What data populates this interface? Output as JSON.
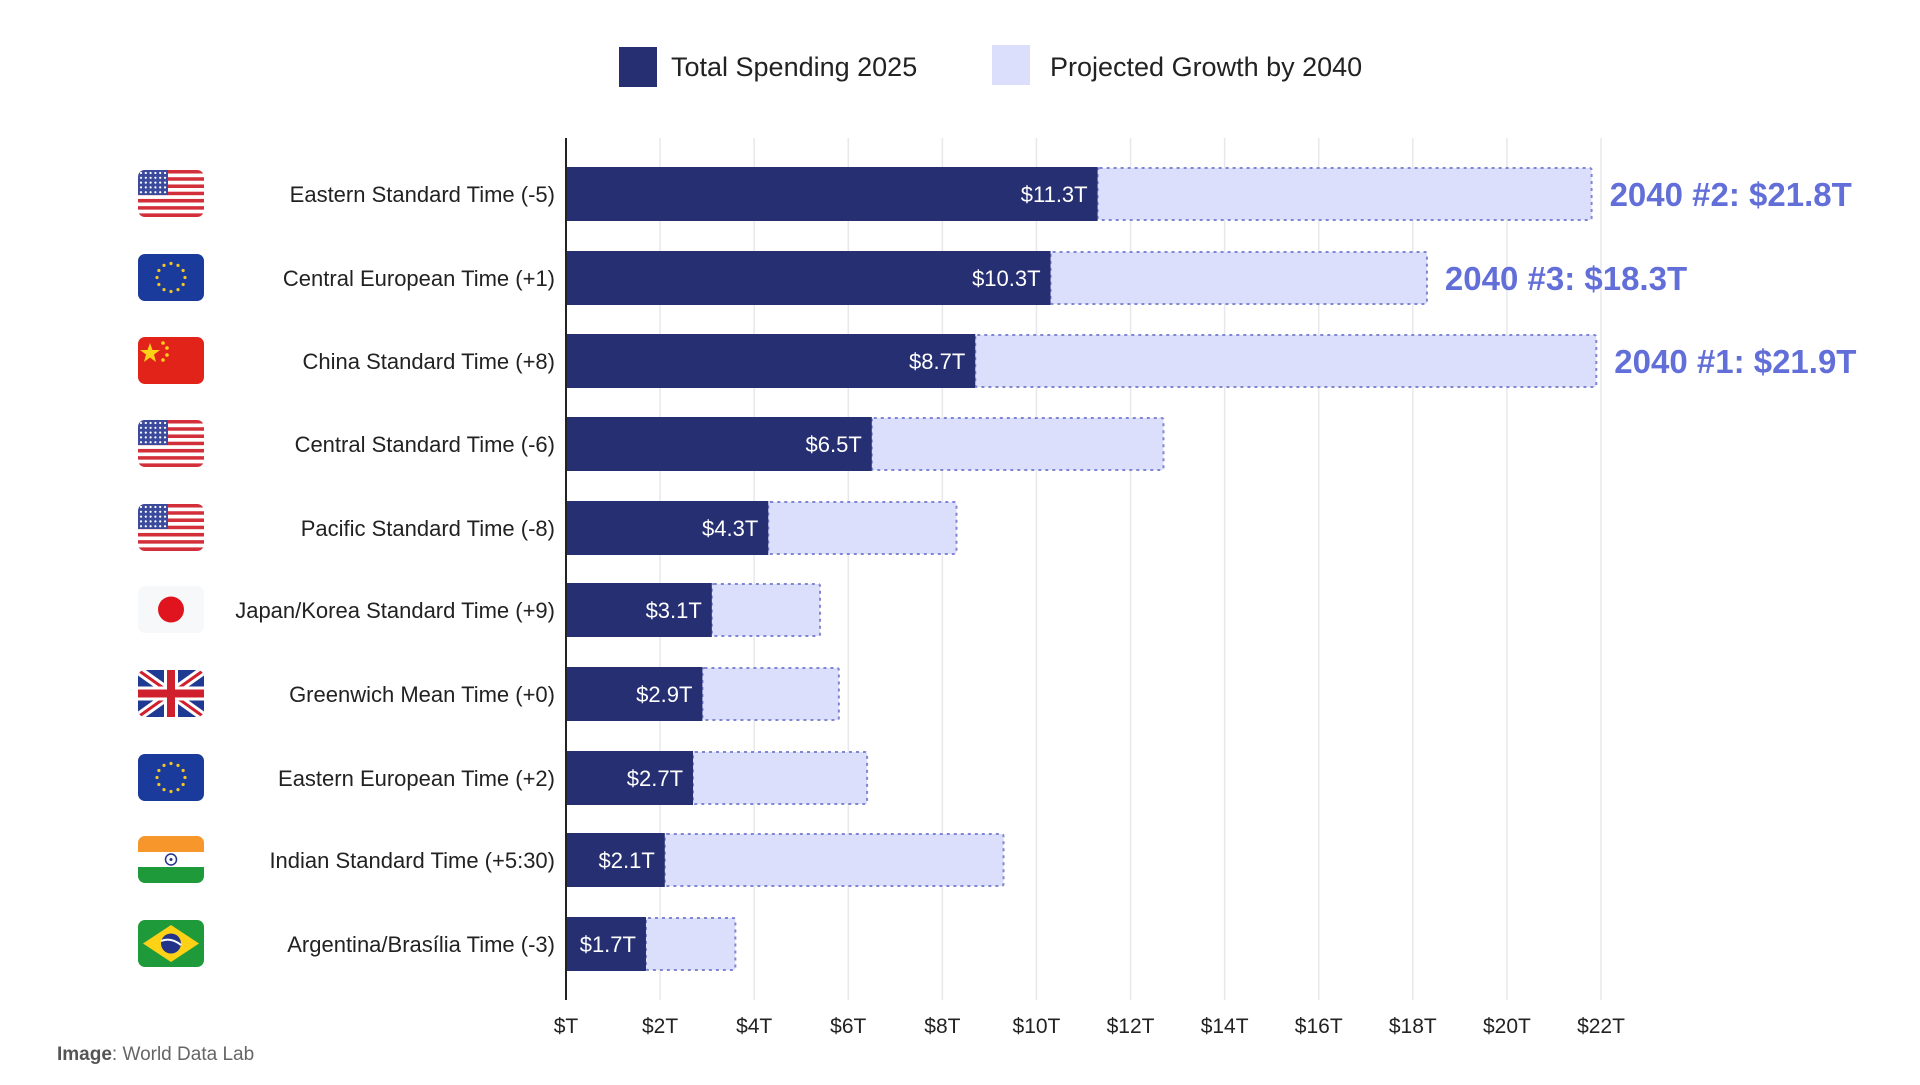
{
  "chart_data": {
    "type": "bar",
    "orientation": "horizontal",
    "stacked_overlay": true,
    "legend": {
      "placement": "top",
      "entries": [
        "Total Spending 2025",
        "Projected Growth by 2040"
      ]
    },
    "categories": [
      "Eastern Standard Time (-5)",
      "Central European Time (+1)",
      "China Standard Time (+8)",
      "Central Standard Time (-6)",
      "Pacific Standard Time (-8)",
      "Japan/Korea Standard Time (+9)",
      "Greenwich Mean Time (+0)",
      "Eastern European Time (+2)",
      "Indian Standard Time (+5:30)",
      "Argentina/Brasília Time (-3)"
    ],
    "flags": [
      "usa-flag-icon",
      "eu-flag-icon",
      "china-flag-icon",
      "usa-flag-icon",
      "usa-flag-icon",
      "japan-flag-icon",
      "uk-flag-icon",
      "eu-flag-icon",
      "india-flag-icon",
      "brazil-flag-icon"
    ],
    "series": [
      {
        "name": "Total Spending 2025",
        "values": [
          11.3,
          10.3,
          8.7,
          6.5,
          4.3,
          3.1,
          2.9,
          2.7,
          2.1,
          1.7
        ],
        "labels": [
          "$11.3T",
          "$10.3T",
          "$8.7T",
          "$6.5T",
          "$4.3T",
          "$3.1T",
          "$2.9T",
          "$2.7T",
          "$2.1T",
          "$1.7T"
        ]
      },
      {
        "name": "Projected Growth by 2040",
        "values": [
          21.8,
          18.3,
          21.9,
          12.7,
          8.3,
          5.4,
          5.8,
          6.4,
          9.3,
          3.6
        ]
      }
    ],
    "annotations": [
      {
        "category_index": 0,
        "text": "2040 #2: $21.8T"
      },
      {
        "category_index": 1,
        "text": "2040 #3: $18.3T"
      },
      {
        "category_index": 2,
        "text": "2040 #1: $21.9T"
      }
    ],
    "x_ticks": [
      0,
      2,
      4,
      6,
      8,
      10,
      12,
      14,
      16,
      18,
      20,
      22
    ],
    "x_tick_labels": [
      "$T",
      "$2T",
      "$4T",
      "$6T",
      "$8T",
      "$10T",
      "$12T",
      "$14T",
      "$16T",
      "$18T",
      "$20T",
      "$22T"
    ],
    "xlim": [
      0,
      22
    ],
    "grid": "vertical",
    "xlabel": "",
    "ylabel": "",
    "title": ""
  },
  "source": {
    "label": "Image",
    "text": ": World Data Lab"
  },
  "colors": {
    "spending": "#252f72",
    "growth": "#dcdffb",
    "growth_border": "#7f86d2",
    "annotation": "#636fd8",
    "grid": "#e8e8ec",
    "text": "#222222"
  }
}
